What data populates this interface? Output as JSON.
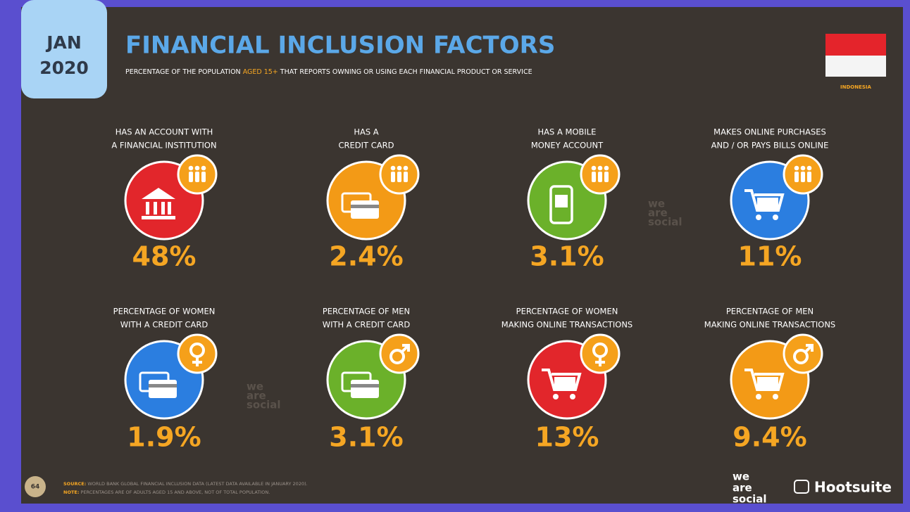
{
  "header": {
    "badge": [
      "JAN",
      "2020"
    ],
    "title": "FINANCIAL INCLUSION FACTORS",
    "subtitle": [
      "PERCENTAGE OF THE POPULATION ",
      "AGED 15+",
      " THAT REPORTS OWNING OR USING EACH FINANCIAL PRODUCT OR SERVICE"
    ],
    "country": "INDONESIA"
  },
  "items": [
    {
      "label": [
        "HAS AN ACCOUNT WITH",
        "A FINANCIAL INSTITUTION"
      ],
      "value": "48%"
    },
    {
      "label": [
        "HAS A",
        "CREDIT CARD"
      ],
      "value": "2.4%"
    },
    {
      "label": [
        "HAS A MOBILE",
        "MONEY ACCOUNT"
      ],
      "value": "3.1%"
    },
    {
      "label": [
        "MAKES ONLINE PURCHASES",
        "AND / OR PAYS BILLS ONLINE"
      ],
      "value": "11%"
    },
    {
      "label": [
        "PERCENTAGE OF WOMEN",
        "WITH A CREDIT CARD"
      ],
      "value": "1.9%"
    },
    {
      "label": [
        "PERCENTAGE OF MEN",
        "WITH A CREDIT CARD"
      ],
      "value": "3.1%"
    },
    {
      "label": [
        "PERCENTAGE OF WOMEN",
        "MAKING ONLINE TRANSACTIONS"
      ],
      "value": "13%"
    },
    {
      "label": [
        "PERCENTAGE OF MEN",
        "MAKING ONLINE TRANSACTIONS"
      ],
      "value": "9.4%"
    }
  ],
  "footer": {
    "page": "64",
    "source": [
      "SOURCE:",
      " WORLD BANK GLOBAL FINANCIAL INCLUSION DATA (LATEST DATA AVAILABLE IN JANUARY 2020)."
    ],
    "note": [
      "NOTE:",
      " PERCENTAGES ARE OF ADULTS AGED 15 AND ABOVE, NOT OF TOTAL POPULATION."
    ],
    "logos": {
      "wearesocial": [
        "we",
        "are",
        "social"
      ],
      "hootsuite": "Hootsuite"
    }
  }
}
